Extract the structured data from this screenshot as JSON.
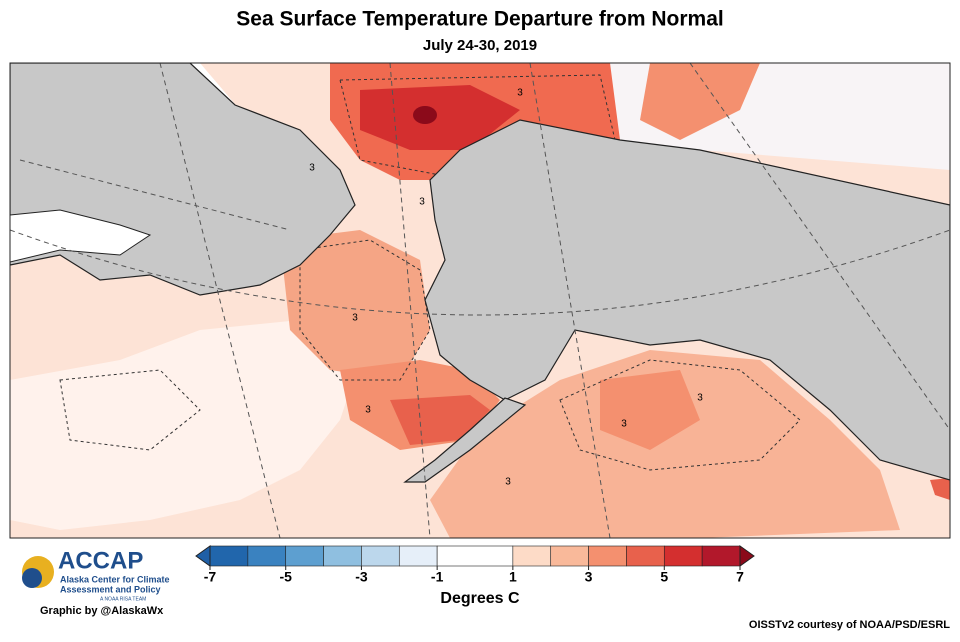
{
  "header": {
    "title": "Sea Surface Temperature Departure from Normal",
    "subtitle": "July 24-30, 2019"
  },
  "colorbar": {
    "levels": [
      -7,
      -6,
      -5,
      -4,
      -3,
      -2,
      -1,
      1,
      2,
      3,
      4,
      5,
      6,
      7
    ],
    "colors": [
      "#2166ac",
      "#3a82c0",
      "#5d9fd0",
      "#8fbfe0",
      "#bcd7ec",
      "#e6eff9",
      "#ffffff",
      "#fddbc7",
      "#f9b99a",
      "#f4906f",
      "#e8614c",
      "#d42f2f",
      "#b2182b"
    ],
    "under_color": "#1f5fa6",
    "over_color": "#8b0a1a",
    "ticks": [
      -7,
      -5,
      -3,
      -1,
      1,
      3,
      5,
      7
    ],
    "label": "Degrees C"
  },
  "map": {
    "contour_labels": [
      "3",
      "3",
      "3",
      "3",
      "3",
      "3",
      "3",
      "3"
    ]
  },
  "logo": {
    "name": "ACCAP",
    "line1": "Alaska Center for Climate",
    "line2": "Assessment and Policy",
    "line3": "A NOAA RISA TEAM"
  },
  "credits": {
    "graphic": "Graphic by @AlaskaWx",
    "source": "OISSTv2 courtesy of NOAA/PSD/ESRL"
  }
}
